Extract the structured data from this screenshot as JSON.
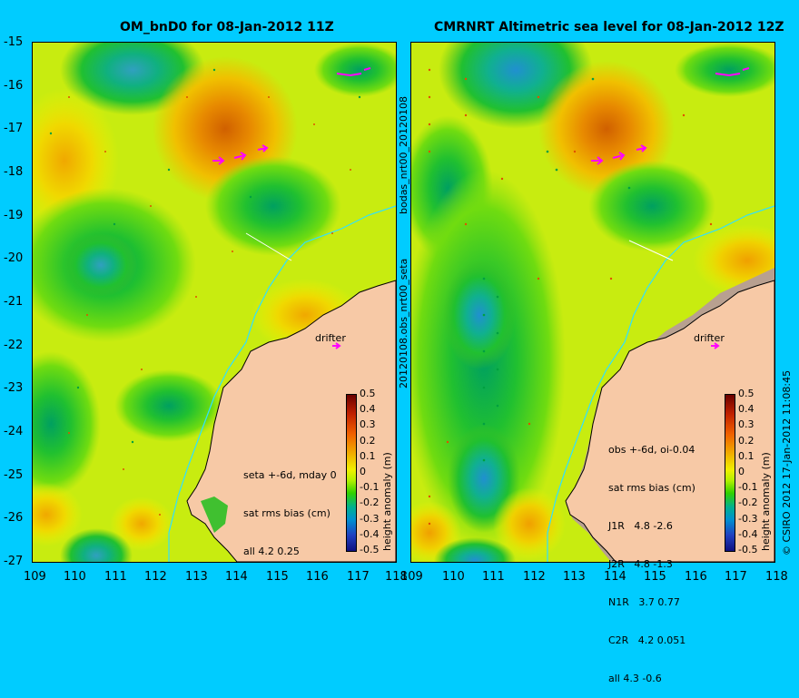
{
  "left_panel": {
    "title": "OM_bnD0 for 08-Jan-2012 11Z",
    "stats": [
      "seta +-6d, mday 0",
      "sat rms bias (cm)",
      "all 4.2 0.25"
    ],
    "drifter_label": "drifter"
  },
  "right_panel": {
    "title": "CMRNRT Altimetric sea level  for 08-Jan-2012 12Z",
    "stats": [
      "obs +-6d, oi-0.04",
      "sat rms bias (cm)",
      "J1R   4.8 -2.6",
      "J2R   4.8 -1.3",
      "N1R   3.7 0.77",
      "C2R   4.2 0.051",
      "all 4.3 -0.6"
    ],
    "drifter_label": "drifter"
  },
  "axes": {
    "y_ticks": [
      "-15",
      "-16",
      "-17",
      "-18",
      "-19",
      "-20",
      "-21",
      "-22",
      "-23",
      "-24",
      "-25",
      "-26",
      "-27"
    ],
    "x_ticks": [
      "109",
      "110",
      "111",
      "112",
      "113",
      "114",
      "115",
      "116",
      "117",
      "118"
    ],
    "lat_range": [
      -27,
      -15
    ],
    "lon_range": [
      109,
      118
    ]
  },
  "colorbar": {
    "ticks": [
      "0.5",
      "0.4",
      "0.3",
      "0.2",
      "0.1",
      "0",
      "-0.1",
      "-0.2",
      "-0.3",
      "-0.4",
      "-0.5"
    ],
    "label": "height anomaly (m)",
    "range": [
      -0.5,
      0.5
    ]
  },
  "side_labels": {
    "middle_top": "bodas_nrt00_20120108",
    "middle_bottom": "20120108.obs_nrt00_seta",
    "right_credit": "© CSIRO 2012  17-Jan-2012 11:08:45"
  },
  "colors": {
    "background": "#00ccff",
    "land": "#f7c9a6",
    "drifter": "#ff00ff"
  }
}
